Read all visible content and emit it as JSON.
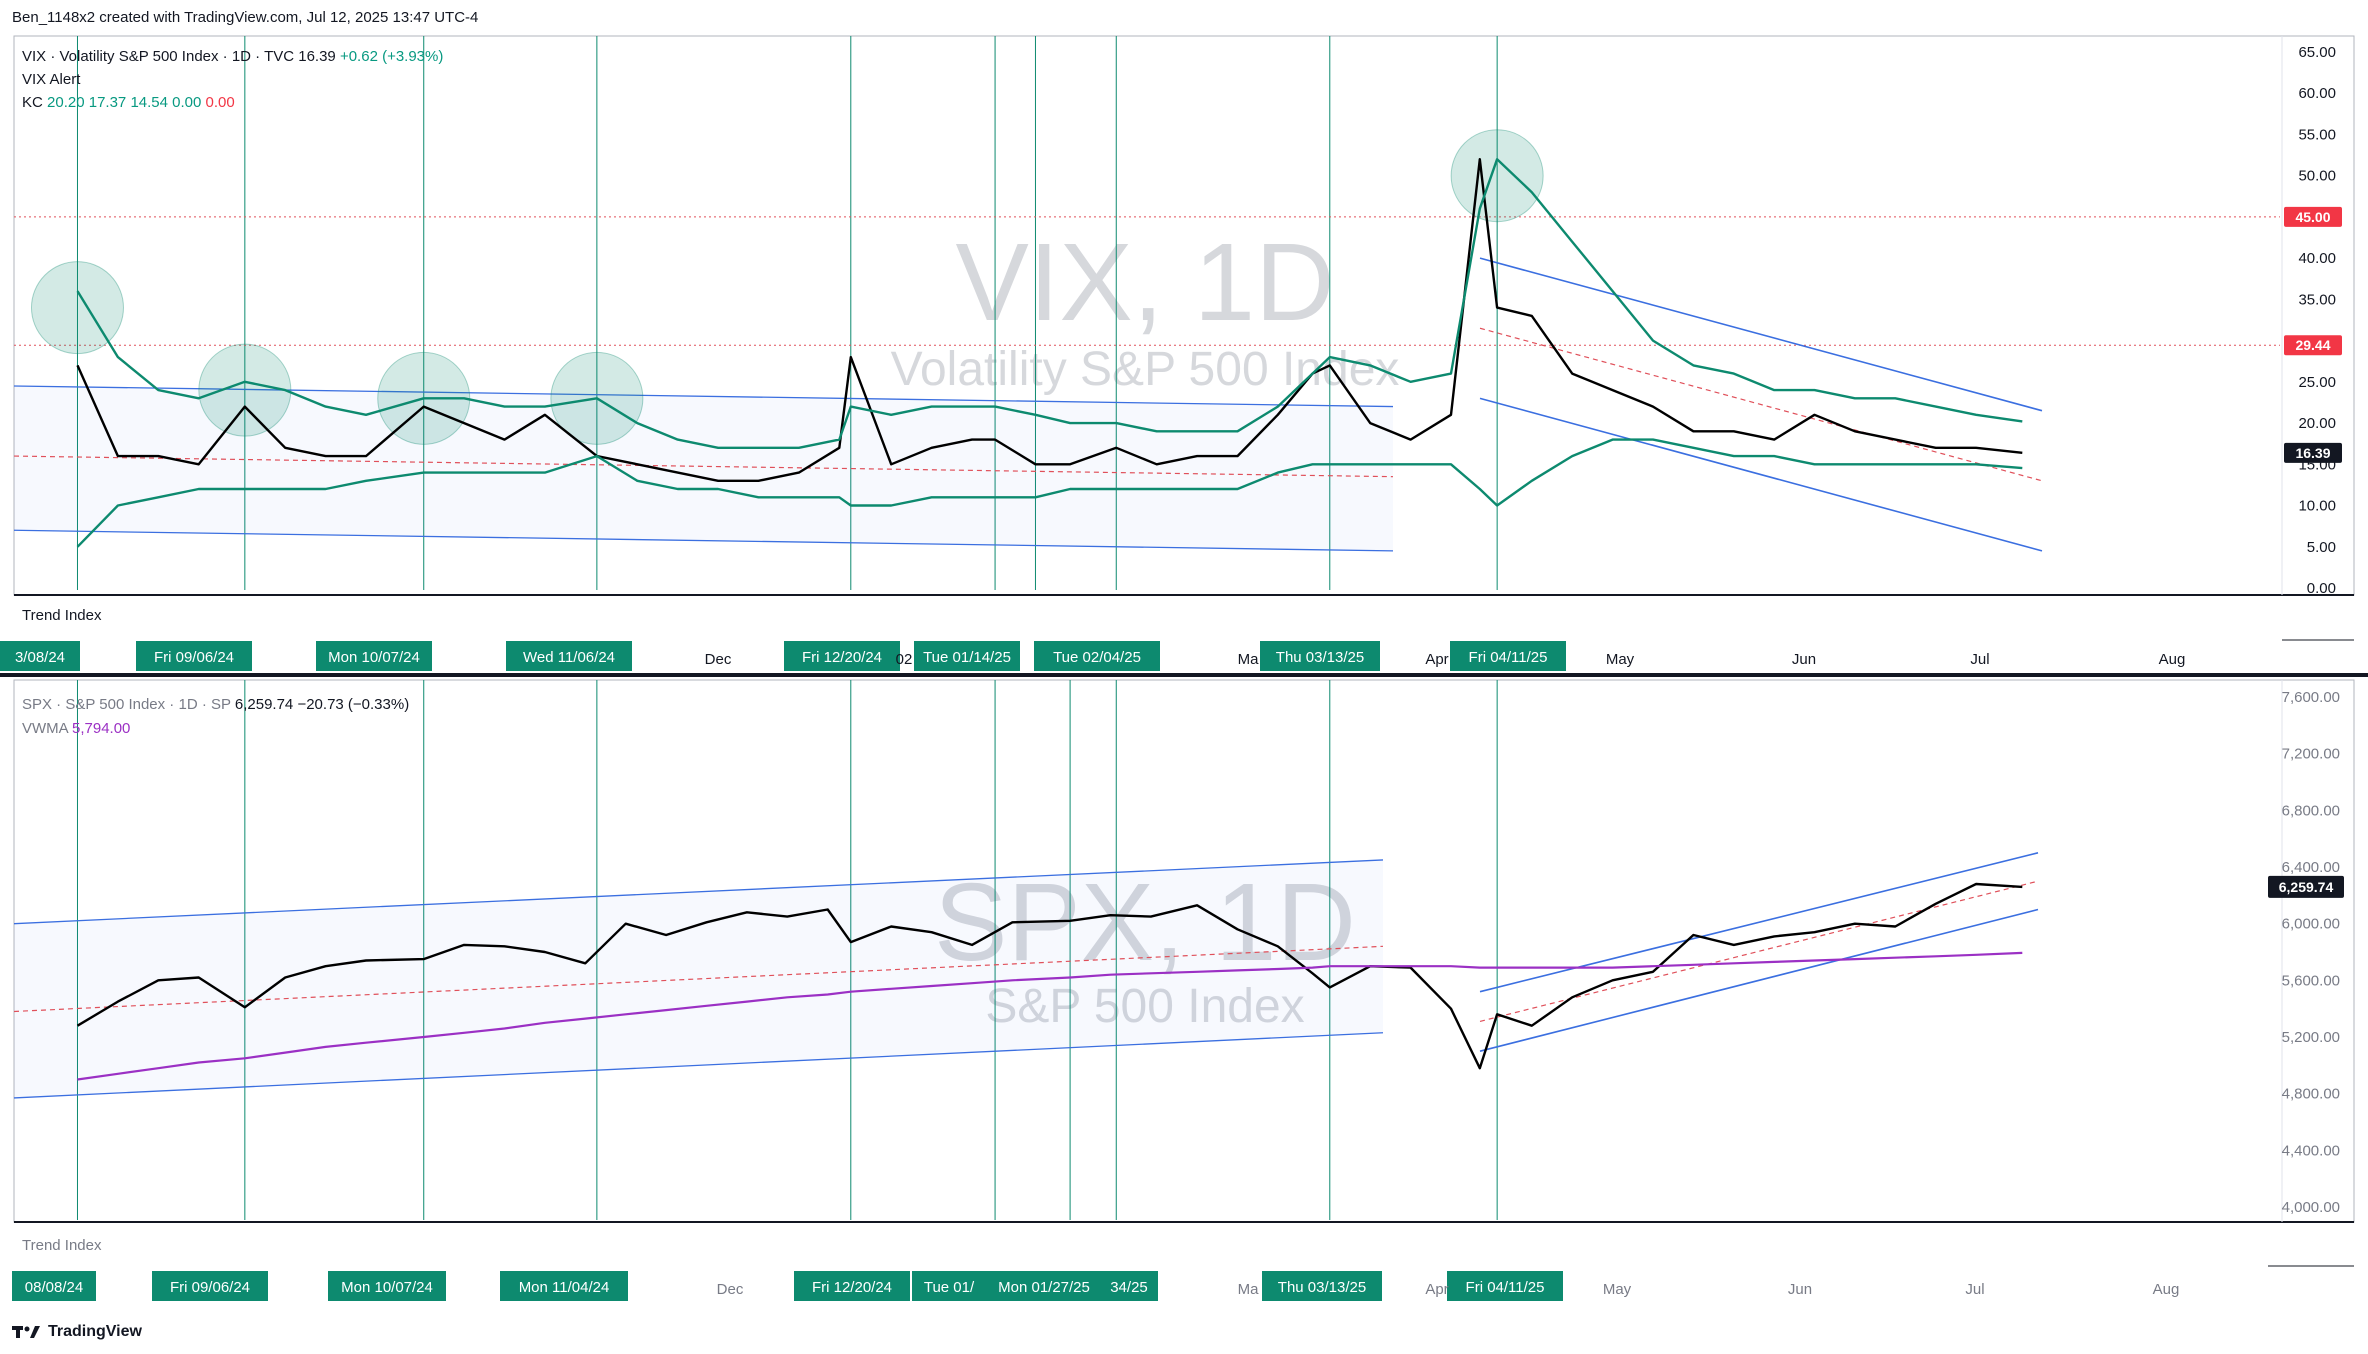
{
  "header": {
    "attribution": "Ben_1148x2 created with TradingView.com, Jul 12, 2025 13:47 UTC-4"
  },
  "footer": {
    "logo_text": "TradingView"
  },
  "colors": {
    "price": "#000000",
    "keltner": "#0d8a6f",
    "channel": "#3b6fe0",
    "dashed": "#e0505a",
    "vwma": "#9b30c4",
    "label_bg": "#0d8a6f",
    "red_label": "#f23645",
    "circle_fill": "rgba(13,138,111,0.18)",
    "grid_line": "#0d8a6f",
    "watermark": "#d6d8dc"
  },
  "panels": {
    "vix": {
      "watermark_main": "VIX, 1D",
      "watermark_sub": "Volatility S&P 500 Index",
      "legend": {
        "line1_label": "VIX · Volatility S&P 500 Index · 1D · TVC",
        "line1_price": "16.39",
        "line1_change": "+0.62 (+3.93%)",
        "line2": "VIX Alert",
        "kc_label": "KC",
        "kc_values": [
          "20.20",
          "17.37",
          "14.54"
        ],
        "kc_zero_1": "0.00",
        "kc_zero_2": "0.00"
      },
      "sub_label": "Trend Index",
      "y_ticks": [
        "65.00",
        "60.00",
        "55.00",
        "50.00",
        "45.00",
        "40.00",
        "35.00",
        "30.00",
        "25.00",
        "20.00",
        "15.00",
        "10.00",
        "5.00",
        "0.00"
      ],
      "price_labels": [
        {
          "text": "45.00",
          "value": 45,
          "kind": "red"
        },
        {
          "text": "29.44",
          "value": 29.44,
          "kind": "red"
        },
        {
          "text": "16.39",
          "value": 16.39,
          "kind": "black"
        }
      ],
      "date_labels": [
        "3/08/24",
        "Fri 09/06/24",
        "Mon 10/07/24",
        "Wed 11/06/24",
        "Fri 12/20/24",
        "Tue 01/14/25",
        "Tue 02/04/25",
        "Thu 03/13/25",
        "Fri 04/11/25"
      ],
      "month_labels": [
        "Dec",
        "Ma",
        "Apr",
        "May",
        "Jun",
        "Jul",
        "Aug",
        "02"
      ]
    },
    "spx": {
      "watermark_main": "SPX, 1D",
      "watermark_sub": "S&P 500 Index",
      "legend": {
        "line1_label": "SPX · S&P 500 Index · 1D · SP",
        "line1_price": "6,259.74",
        "line1_change": "−20.73 (−0.33%)",
        "vwma_label": "VWMA",
        "vwma_value": "5,794.00"
      },
      "sub_label": "Trend Index",
      "y_ticks": [
        "7,600.00",
        "7,200.00",
        "6,800.00",
        "6,400.00",
        "6,000.00",
        "5,600.00",
        "5,200.00",
        "4,800.00",
        "4,400.00",
        "4,000.00"
      ],
      "price_labels": [
        {
          "text": "6,259.74",
          "value": 6259.74,
          "kind": "black"
        }
      ],
      "date_labels": [
        "08/08/24",
        "Fri 09/06/24",
        "Mon 10/07/24",
        "Mon 11/04/24",
        "Fri 12/20/24",
        "Tue 01/",
        "Mon 01/27/25",
        "34/25",
        "Thu 03/13/25",
        "Fri 04/11/25"
      ],
      "month_labels": [
        "Dec",
        "Ma",
        "Apr",
        "May",
        "Jun",
        "Jul",
        "Aug"
      ]
    }
  },
  "chart_data": [
    {
      "type": "line",
      "title": "VIX · Volatility S&P 500 Index · 1D · TVC",
      "ylim": [
        0,
        65
      ],
      "x": [
        "2024-08-08",
        "2024-08-15",
        "2024-08-22",
        "2024-08-29",
        "2024-09-06",
        "2024-09-13",
        "2024-09-20",
        "2024-09-27",
        "2024-10-07",
        "2024-10-14",
        "2024-10-21",
        "2024-10-28",
        "2024-11-06",
        "2024-11-13",
        "2024-11-20",
        "2024-11-27",
        "2024-12-04",
        "2024-12-11",
        "2024-12-18",
        "2024-12-20",
        "2024-12-27",
        "2025-01-03",
        "2025-01-10",
        "2025-01-14",
        "2025-01-21",
        "2025-01-27",
        "2025-02-04",
        "2025-02-11",
        "2025-02-18",
        "2025-02-25",
        "2025-03-04",
        "2025-03-10",
        "2025-03-13",
        "2025-03-20",
        "2025-03-27",
        "2025-04-03",
        "2025-04-08",
        "2025-04-11",
        "2025-04-17",
        "2025-04-24",
        "2025-05-01",
        "2025-05-08",
        "2025-05-15",
        "2025-05-22",
        "2025-05-29",
        "2025-06-05",
        "2025-06-12",
        "2025-06-19",
        "2025-06-26",
        "2025-07-03",
        "2025-07-11"
      ],
      "series": [
        {
          "name": "VIX",
          "values": [
            27,
            16,
            16,
            15,
            22,
            17,
            16,
            16,
            22,
            20,
            18,
            21,
            16,
            15,
            14,
            13,
            13,
            14,
            17,
            28,
            15,
            17,
            18,
            18,
            15,
            15,
            17,
            15,
            16,
            16,
            21,
            26,
            27,
            20,
            18,
            21,
            52,
            34,
            33,
            26,
            24,
            22,
            19,
            19,
            18,
            21,
            19,
            18,
            17,
            17,
            16.39
          ]
        },
        {
          "name": "KC upper",
          "values": [
            36,
            28,
            24,
            23,
            25,
            24,
            22,
            21,
            23,
            23,
            22,
            22,
            23,
            20,
            18,
            17,
            17,
            17,
            18,
            22,
            21,
            22,
            22,
            22,
            21,
            20,
            20,
            19,
            19,
            19,
            22,
            26,
            28,
            27,
            25,
            26,
            46,
            52,
            48,
            42,
            36,
            30,
            27,
            26,
            24,
            24,
            23,
            23,
            22,
            21,
            20.2
          ]
        },
        {
          "name": "KC middle",
          "values": [
            24,
            19,
            18,
            17,
            18,
            17,
            16,
            16,
            17,
            17,
            16,
            16,
            17,
            15,
            14,
            14,
            13,
            13,
            14,
            16,
            16,
            17,
            17,
            17,
            16,
            16,
            16,
            15,
            15,
            15,
            17,
            20,
            21,
            21,
            19,
            20,
            32,
            36,
            33,
            29,
            26,
            22,
            20,
            20,
            19,
            18,
            18,
            17,
            17,
            17,
            17.37
          ]
        },
        {
          "name": "KC lower",
          "values": [
            5,
            10,
            11,
            12,
            12,
            12,
            12,
            13,
            14,
            14,
            14,
            14,
            16,
            13,
            12,
            12,
            11,
            11,
            11,
            10,
            10,
            11,
            11,
            11,
            11,
            12,
            12,
            12,
            12,
            12,
            14,
            15,
            15,
            15,
            15,
            15,
            12,
            10,
            13,
            16,
            18,
            18,
            17,
            16,
            16,
            15,
            15,
            15,
            15,
            15,
            14.54
          ]
        }
      ]
    },
    {
      "type": "line",
      "title": "SPX · S&P 500 Index · 1D · SP",
      "ylim": [
        4000,
        7600
      ],
      "x": [
        "2024-08-08",
        "2024-08-15",
        "2024-08-22",
        "2024-08-29",
        "2024-09-06",
        "2024-09-13",
        "2024-09-20",
        "2024-09-27",
        "2024-10-07",
        "2024-10-14",
        "2024-10-21",
        "2024-10-28",
        "2024-11-04",
        "2024-11-11",
        "2024-11-18",
        "2024-11-25",
        "2024-12-02",
        "2024-12-09",
        "2024-12-16",
        "2024-12-20",
        "2024-12-27",
        "2025-01-03",
        "2025-01-10",
        "2025-01-17",
        "2025-01-27",
        "2025-02-03",
        "2025-02-10",
        "2025-02-18",
        "2025-02-25",
        "2025-03-04",
        "2025-03-10",
        "2025-03-13",
        "2025-03-20",
        "2025-03-27",
        "2025-04-03",
        "2025-04-08",
        "2025-04-11",
        "2025-04-17",
        "2025-04-24",
        "2025-05-01",
        "2025-05-08",
        "2025-05-15",
        "2025-05-22",
        "2025-05-29",
        "2025-06-05",
        "2025-06-12",
        "2025-06-19",
        "2025-06-26",
        "2025-07-03",
        "2025-07-11"
      ],
      "series": [
        {
          "name": "SPX",
          "values": [
            5280,
            5450,
            5600,
            5620,
            5410,
            5620,
            5700,
            5740,
            5750,
            5850,
            5840,
            5800,
            5720,
            6000,
            5920,
            6010,
            6080,
            6050,
            6100,
            5870,
            5980,
            5940,
            5850,
            6010,
            6020,
            6060,
            6050,
            6130,
            5960,
            5840,
            5650,
            5550,
            5700,
            5690,
            5400,
            4980,
            5360,
            5280,
            5480,
            5600,
            5660,
            5920,
            5850,
            5910,
            5940,
            6000,
            5980,
            6140,
            6280,
            6259.74
          ]
        },
        {
          "name": "VWMA",
          "values": [
            4900,
            4940,
            4980,
            5020,
            5050,
            5090,
            5130,
            5160,
            5200,
            5230,
            5260,
            5300,
            5330,
            5360,
            5390,
            5420,
            5450,
            5480,
            5500,
            5520,
            5540,
            5560,
            5580,
            5600,
            5620,
            5640,
            5650,
            5660,
            5670,
            5680,
            5690,
            5700,
            5700,
            5700,
            5700,
            5690,
            5690,
            5690,
            5690,
            5690,
            5700,
            5710,
            5720,
            5730,
            5740,
            5750,
            5760,
            5770,
            5780,
            5794
          ]
        }
      ]
    }
  ]
}
